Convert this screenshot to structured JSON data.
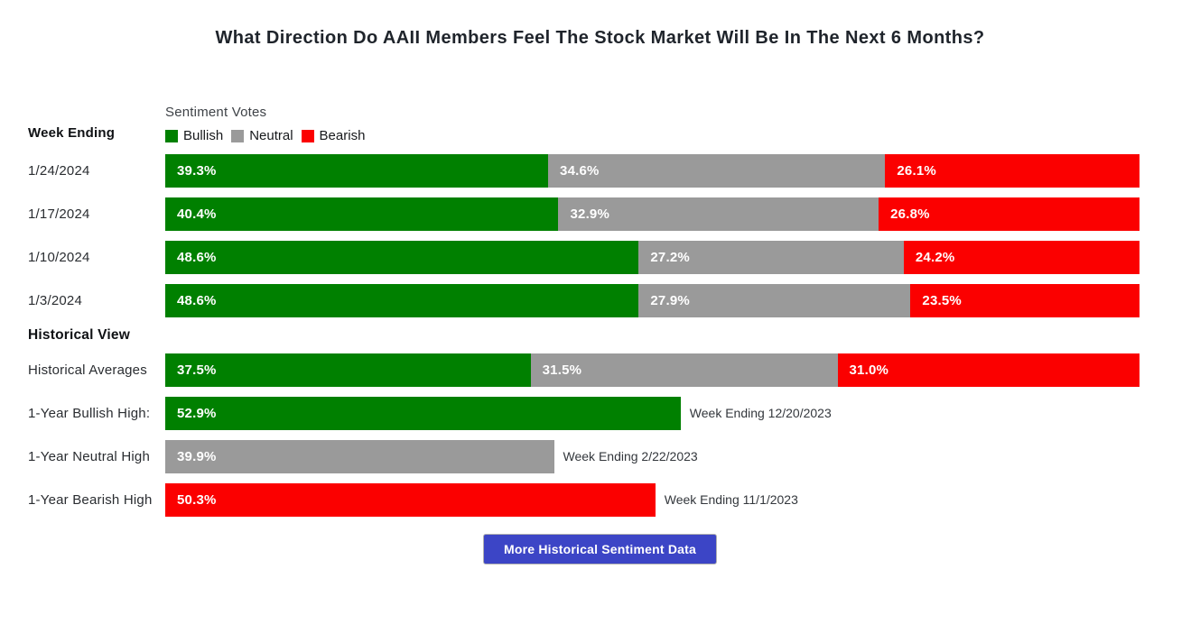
{
  "title": "What Direction Do AAII Members Feel The Stock Market Will Be In The Next 6 Months?",
  "legend": {
    "title": "Sentiment Votes",
    "items": [
      {
        "label": "Bullish",
        "color": "#008000"
      },
      {
        "label": "Neutral",
        "color": "#9a9a9a"
      },
      {
        "label": "Bearish",
        "color": "#fb0000"
      }
    ]
  },
  "week_section": {
    "header": "Week Ending",
    "rows": [
      {
        "date": "1/24/2024",
        "bullish": "39.3%",
        "neutral": "34.6%",
        "bearish": "26.1%"
      },
      {
        "date": "1/17/2024",
        "bullish": "40.4%",
        "neutral": "32.9%",
        "bearish": "26.8%"
      },
      {
        "date": "1/10/2024",
        "bullish": "48.6%",
        "neutral": "27.2%",
        "bearish": "24.2%"
      },
      {
        "date": "1/3/2024",
        "bullish": "48.6%",
        "neutral": "27.9%",
        "bearish": "23.5%"
      }
    ]
  },
  "historical_section": {
    "header": "Historical View",
    "averages": {
      "label": "Historical Averages",
      "bullish": "37.5%",
      "neutral": "31.5%",
      "bearish": "31.0%"
    },
    "highs": [
      {
        "label": "1-Year Bullish High:",
        "value_label": "52.9%",
        "annotation": "Week Ending 12/20/2023"
      },
      {
        "label": "1-Year Neutral High",
        "value_label": "39.9%",
        "annotation": "Week Ending 2/22/2023"
      },
      {
        "label": "1-Year Bearish High",
        "value_label": "50.3%",
        "annotation": "Week Ending 11/1/2023"
      }
    ]
  },
  "button": {
    "label": "More Historical Sentiment Data"
  },
  "colors": {
    "bullish": "#008000",
    "neutral": "#9a9a9a",
    "bearish": "#fb0000",
    "button": "#3c45c6"
  },
  "chart_data": {
    "type": "bar",
    "orientation": "horizontal-stacked",
    "title": "What Direction Do AAII Members Feel The Stock Market Will Be In The Next 6 Months?",
    "categories": [
      "1/24/2024",
      "1/17/2024",
      "1/10/2024",
      "1/3/2024",
      "Historical Averages"
    ],
    "series": [
      {
        "name": "Bullish",
        "color": "#008000",
        "values": [
          39.3,
          40.4,
          48.6,
          48.6,
          37.5
        ]
      },
      {
        "name": "Neutral",
        "color": "#9a9a9a",
        "values": [
          34.6,
          32.9,
          27.2,
          27.9,
          31.5
        ]
      },
      {
        "name": "Bearish",
        "color": "#fb0000",
        "values": [
          26.1,
          26.8,
          24.2,
          23.5,
          31.0
        ]
      }
    ],
    "highs": [
      {
        "label": "1-Year Bullish High:",
        "series": "Bullish",
        "value": 52.9,
        "week_ending": "12/20/2023"
      },
      {
        "label": "1-Year Neutral High",
        "series": "Neutral",
        "value": 39.9,
        "week_ending": "2/22/2023"
      },
      {
        "label": "1-Year Bearish High",
        "series": "Bearish",
        "value": 50.3,
        "week_ending": "11/1/2023"
      }
    ],
    "xlim": [
      0,
      100
    ],
    "value_suffix": "%",
    "legend_position": "top-left",
    "grid": false
  }
}
